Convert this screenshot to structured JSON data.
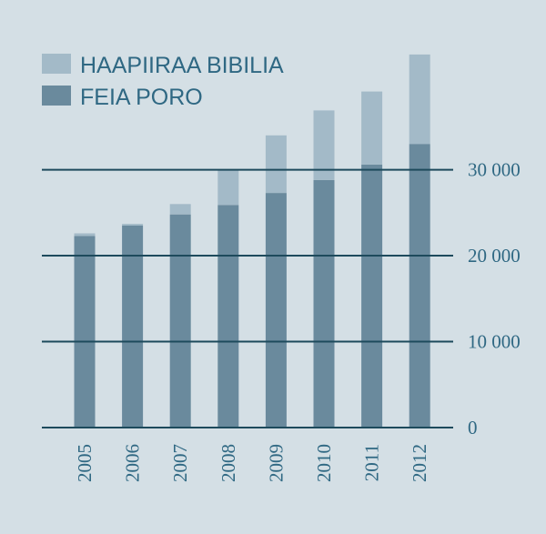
{
  "chart_data": {
    "type": "bar",
    "stacked": true,
    "categories": [
      "2005",
      "2006",
      "2007",
      "2008",
      "2009",
      "2010",
      "2011",
      "2012"
    ],
    "series": [
      {
        "name": "FEIA PORO",
        "values": [
          22300,
          23500,
          24800,
          25900,
          27300,
          28800,
          30600,
          33000
        ],
        "color": "#6a8a9d"
      },
      {
        "name": "HAAPIIRAA BIBILIA",
        "values": [
          300,
          200,
          1200,
          4000,
          6700,
          8100,
          8500,
          10400
        ],
        "color": "#a3bac8"
      }
    ],
    "ylim": [
      0,
      43500
    ],
    "yticks": [
      0,
      10000,
      20000,
      30000
    ],
    "ytick_labels": [
      "0",
      "10 000",
      "20 000",
      "30 000"
    ],
    "legend_position": "top-left",
    "grid": true,
    "colors": {
      "background": "#d4dfe5",
      "gridline": "#1d4a5c",
      "text": "#2f6883"
    }
  }
}
